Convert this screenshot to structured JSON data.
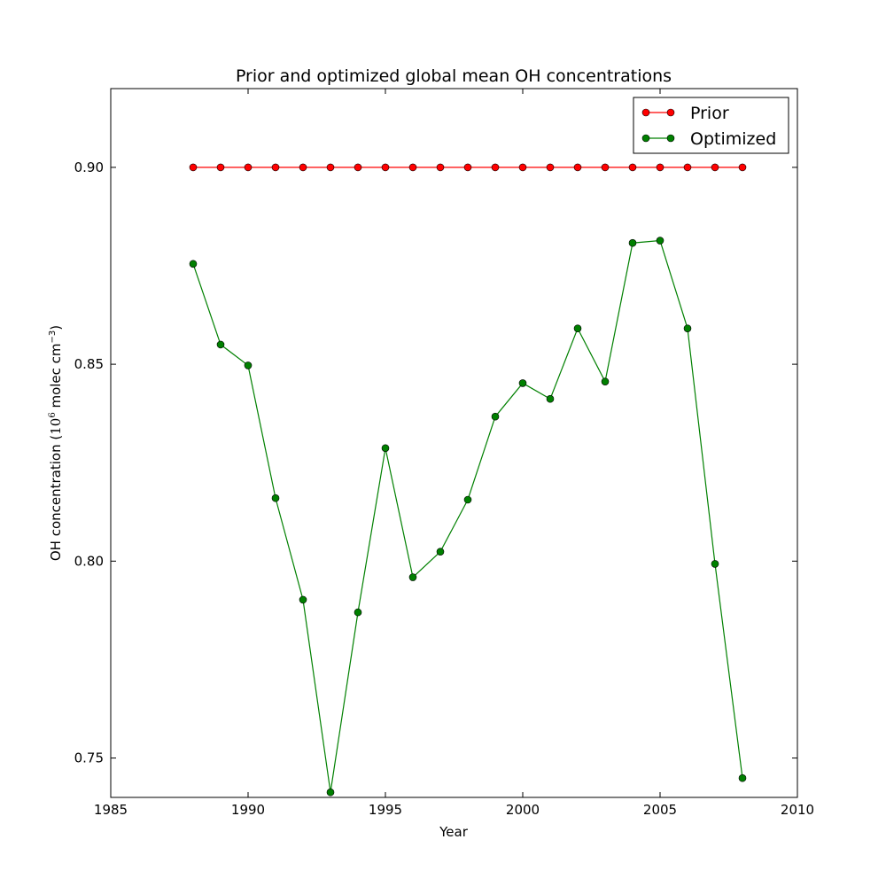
{
  "chart_data": {
    "type": "line",
    "title": "Prior and optimized global mean OH concentrations",
    "xlabel": "Year",
    "ylabel_main": "OH concentration (",
    "ylabel_base": "10",
    "ylabel_exp": "6",
    "ylabel_mid": " molec cm",
    "ylabel_exp2": "−3",
    "ylabel_end": ")",
    "xlim": [
      1985,
      2010
    ],
    "ylim": [
      0.74,
      0.92
    ],
    "xticks": [
      1985,
      1990,
      1995,
      2000,
      2005,
      2010
    ],
    "xtick_labels": [
      "1985",
      "1990",
      "1995",
      "2000",
      "2005",
      "2010"
    ],
    "yticks": [
      0.75,
      0.8,
      0.85,
      0.9
    ],
    "ytick_labels": [
      "0.75",
      "0.80",
      "0.85",
      "0.90"
    ],
    "grid": false,
    "legend_position": "top-right",
    "x": [
      1988,
      1989,
      1990,
      1991,
      1992,
      1993,
      1994,
      1995,
      1996,
      1997,
      1998,
      1999,
      2000,
      2001,
      2002,
      2003,
      2004,
      2005,
      2006,
      2007,
      2008
    ],
    "series": [
      {
        "name": "Prior",
        "color": "#ff0000",
        "values": [
          0.9,
          0.9,
          0.9,
          0.9,
          0.9,
          0.9,
          0.9,
          0.9,
          0.9,
          0.9,
          0.9,
          0.9,
          0.9,
          0.9,
          0.9,
          0.9,
          0.9,
          0.9,
          0.9,
          0.9,
          0.9
        ]
      },
      {
        "name": "Optimized",
        "color": "#008000",
        "values": [
          0.8755,
          0.855,
          0.8497,
          0.816,
          0.7902,
          0.7413,
          0.787,
          0.8287,
          0.7959,
          0.8024,
          0.8156,
          0.8367,
          0.8452,
          0.8412,
          0.8591,
          0.8456,
          0.8808,
          0.8814,
          0.8591,
          0.7993,
          0.7449
        ]
      }
    ]
  }
}
